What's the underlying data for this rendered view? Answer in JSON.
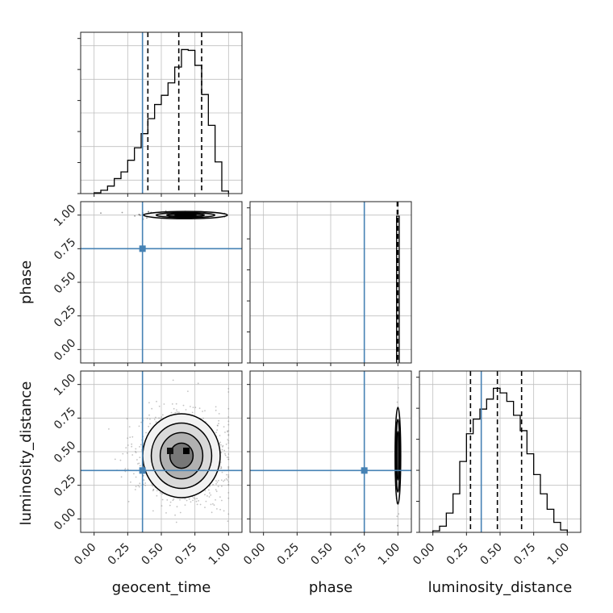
{
  "chart_data": {
    "type": "corner",
    "parameters": [
      "geocent_time",
      "phase",
      "luminosity_distance"
    ],
    "axis_range": [
      -0.1,
      1.1
    ],
    "ticks": [
      0.0,
      0.25,
      0.5,
      0.75,
      1.0
    ],
    "tick_labels": [
      "0.00",
      "0.25",
      "0.50",
      "0.75",
      "1.00"
    ],
    "grid": true,
    "colors": {
      "truth": "#4682b4",
      "hist": "#000000",
      "quantile": "#000000",
      "grid": "#bfbfbf"
    },
    "truths": {
      "geocent_time": 0.36,
      "phase": 0.75,
      "luminosity_distance": 0.36
    },
    "quantiles": {
      "geocent_time": [
        0.4,
        0.63,
        0.8
      ],
      "phase": [
        0.995,
        0.999,
        1.0
      ],
      "luminosity_distance": [
        0.28,
        0.48,
        0.66
      ]
    },
    "histograms": {
      "geocent_time": {
        "bin_edges": [
          0.0,
          0.05,
          0.1,
          0.15,
          0.2,
          0.25,
          0.3,
          0.35,
          0.4,
          0.45,
          0.5,
          0.55,
          0.6,
          0.65,
          0.7,
          0.75,
          0.8,
          0.85,
          0.9,
          0.95,
          1.0
        ],
        "counts": [
          1,
          4,
          9,
          18,
          26,
          40,
          55,
          72,
          90,
          107,
          118,
          133,
          152,
          173,
          172,
          154,
          119,
          82,
          38,
          3
        ]
      },
      "phase": {
        "bin_edges": [
          0.99,
          1.0,
          1.01
        ],
        "counts": [
          1,
          1
        ]
      },
      "luminosity_distance": {
        "bin_edges": [
          0.0,
          0.05,
          0.1,
          0.15,
          0.2,
          0.25,
          0.3,
          0.35,
          0.4,
          0.45,
          0.5,
          0.55,
          0.6,
          0.65,
          0.7,
          0.75,
          0.8,
          0.85,
          0.9,
          0.95,
          1.0
        ],
        "counts": [
          2,
          8,
          25,
          50,
          92,
          128,
          147,
          160,
          173,
          187,
          181,
          170,
          152,
          132,
          102,
          75,
          50,
          30,
          13,
          3
        ]
      }
    },
    "densities": [
      {
        "x": "geocent_time",
        "y": "phase",
        "center": [
          0.68,
          1.0
        ],
        "spread": [
          0.16,
          0.01
        ],
        "x_extent": [
          0.05,
          0.97
        ]
      },
      {
        "x": "geocent_time",
        "y": "luminosity_distance",
        "center": [
          0.65,
          0.47
        ],
        "spread": [
          0.17,
          0.17
        ]
      },
      {
        "x": "phase",
        "y": "luminosity_distance",
        "center": [
          1.0,
          0.47
        ],
        "spread": [
          0.006,
          0.17
        ]
      }
    ]
  }
}
